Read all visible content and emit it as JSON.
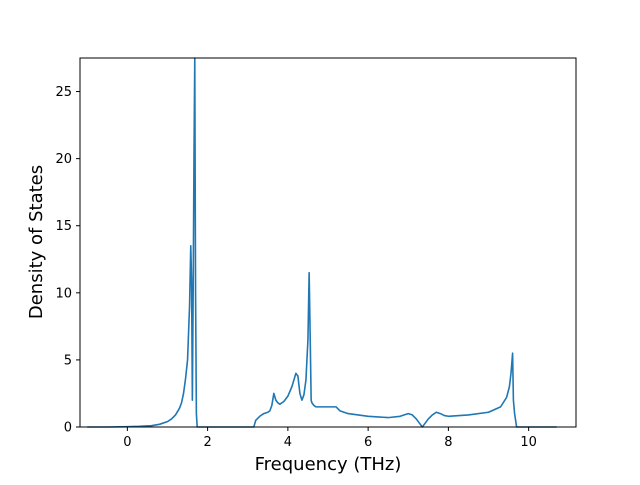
{
  "chart_data": {
    "type": "line",
    "title": "",
    "xlabel": "Frequency (THz)",
    "ylabel": "Density of States",
    "xlim": [
      -1.18,
      11.18
    ],
    "ylim": [
      0,
      27.5
    ],
    "xticks": [
      0,
      2,
      4,
      6,
      8,
      10
    ],
    "yticks": [
      0,
      5,
      10,
      15,
      20,
      25
    ],
    "grid": false,
    "legend": "none",
    "series": [
      {
        "color": "#1f77b4",
        "x": [
          -1.0,
          -0.5,
          0.0,
          0.3,
          0.6,
          0.8,
          1.0,
          1.1,
          1.2,
          1.3,
          1.35,
          1.4,
          1.45,
          1.5,
          1.55,
          1.58,
          1.6,
          1.62,
          1.64,
          1.66,
          1.68,
          1.7,
          1.72,
          1.74,
          1.76,
          1.78,
          1.8,
          2.0,
          3.0,
          3.15,
          3.2,
          3.3,
          3.4,
          3.5,
          3.55,
          3.6,
          3.65,
          3.7,
          3.75,
          3.8,
          3.9,
          4.0,
          4.1,
          4.2,
          4.25,
          4.3,
          4.35,
          4.4,
          4.45,
          4.5,
          4.53,
          4.56,
          4.58,
          4.6,
          4.65,
          4.7,
          4.8,
          4.9,
          5.0,
          5.1,
          5.2,
          5.3,
          5.5,
          6.0,
          6.5,
          6.8,
          6.9,
          7.0,
          7.1,
          7.2,
          7.3,
          7.35,
          7.4,
          7.5,
          7.6,
          7.7,
          7.8,
          7.9,
          8.0,
          8.5,
          9.0,
          9.3,
          9.45,
          9.52,
          9.56,
          9.6,
          9.62,
          9.65,
          9.7,
          9.75,
          10.0,
          10.7
        ],
        "y": [
          0.0,
          0.0,
          0.02,
          0.05,
          0.1,
          0.2,
          0.4,
          0.6,
          0.9,
          1.4,
          1.8,
          2.5,
          3.6,
          5.0,
          9.0,
          13.5,
          11.0,
          2.0,
          10.0,
          20.0,
          27.5,
          10.0,
          1.0,
          0.0,
          0.0,
          0.0,
          0.0,
          0.0,
          0.0,
          0.0,
          0.5,
          0.8,
          1.0,
          1.1,
          1.2,
          1.6,
          2.5,
          2.0,
          1.8,
          1.7,
          1.9,
          2.3,
          3.0,
          4.0,
          3.8,
          2.5,
          2.0,
          2.4,
          3.5,
          6.5,
          11.5,
          6.0,
          2.0,
          1.8,
          1.6,
          1.5,
          1.5,
          1.5,
          1.5,
          1.5,
          1.5,
          1.2,
          1.0,
          0.8,
          0.7,
          0.8,
          0.9,
          1.0,
          0.9,
          0.6,
          0.2,
          0.0,
          0.2,
          0.6,
          0.9,
          1.1,
          1.0,
          0.85,
          0.8,
          0.9,
          1.1,
          1.5,
          2.2,
          3.0,
          4.0,
          5.5,
          2.0,
          1.0,
          0.0,
          0.0,
          0.0,
          0.0
        ]
      }
    ]
  }
}
